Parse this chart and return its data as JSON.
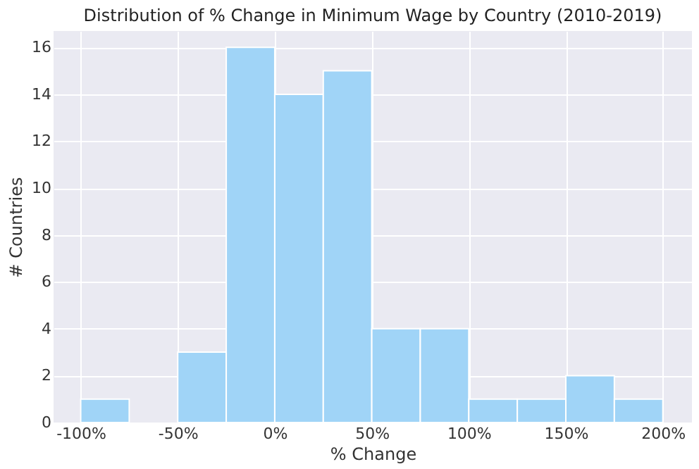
{
  "chart_data": {
    "type": "histogram",
    "title": "Distribution of % Change in Minimum Wage by Country (2010-2019)",
    "xlabel": "% Change",
    "ylabel": "# Countries",
    "bins": [
      -100,
      -75,
      -50,
      -25,
      0,
      25,
      50,
      75,
      100,
      125,
      150,
      175,
      200
    ],
    "values": [
      1,
      0,
      3,
      16,
      14,
      15,
      4,
      4,
      1,
      1,
      2,
      1
    ],
    "color": "#a0d4f7",
    "xlim": [
      -114,
      215
    ],
    "ylim": [
      0,
      16.7
    ],
    "xticks": [
      {
        "value": -100,
        "label": "-100%"
      },
      {
        "value": -50,
        "label": "-50%"
      },
      {
        "value": 0,
        "label": "0%"
      },
      {
        "value": 50,
        "label": "50%"
      },
      {
        "value": 100,
        "label": "100%"
      },
      {
        "value": 150,
        "label": "150%"
      },
      {
        "value": 200,
        "label": "200%"
      }
    ],
    "yticks": [
      0,
      2,
      4,
      6,
      8,
      10,
      12,
      14,
      16
    ],
    "grid": true
  }
}
